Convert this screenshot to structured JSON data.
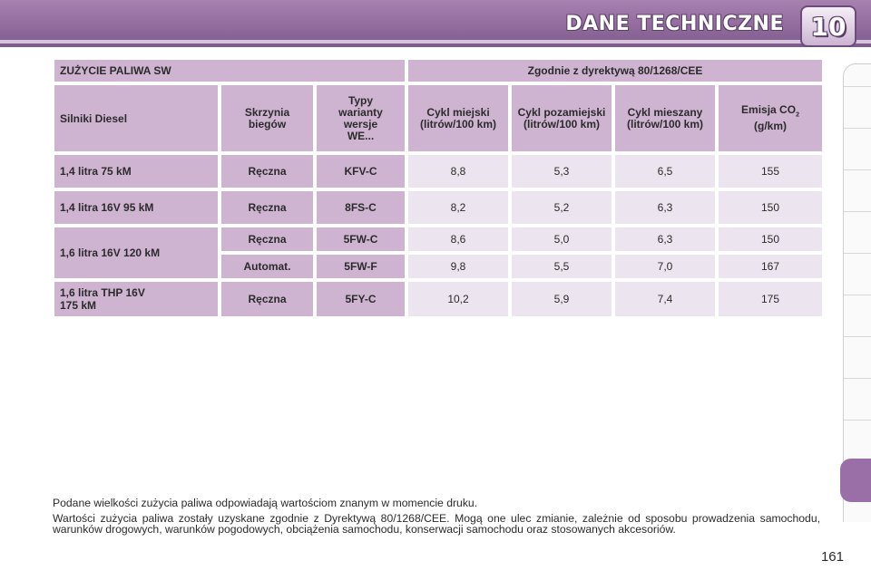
{
  "header": {
    "title": "DANE TECHNICZNE",
    "chapter": "10"
  },
  "table": {
    "title_left": "ZUŻYCIE PALIWA SW",
    "title_right": "Zgodnie z dyrektywą 80/1268/CEE",
    "columns": {
      "engines": "Silniki Diesel",
      "gearbox": "Skrzynia biegów",
      "variants": "Typy warianty wersje WE...",
      "urban": "Cykl miejski (litrów/100 km)",
      "extra_urban": "Cykl pozamiejski (litrów/100 km)",
      "combined": "Cykl mieszany (litrów/100 km)",
      "co2_prefix": "Emisja CO",
      "co2_sub": "2",
      "co2_unit": "(g/km)"
    },
    "rows": [
      {
        "engine": "1,4 litra 75 kM",
        "gearbox": "Ręczna",
        "variant": "KFV-C",
        "urban": "8,8",
        "extra": "5,3",
        "mixed": "6,5",
        "co2": "155"
      },
      {
        "engine": "1,4 litra 16V 95 kM",
        "gearbox": "Ręczna",
        "variant": "8FS-C",
        "urban": "8,2",
        "extra": "5,2",
        "mixed": "6,3",
        "co2": "150"
      },
      {
        "engine": "1,6 litra 16V 120 kM",
        "gearbox": "Ręczna",
        "variant": "5FW-C",
        "urban": "8,6",
        "extra": "5,0",
        "mixed": "6,3",
        "co2": "150"
      },
      {
        "engine": "",
        "gearbox": "Automat.",
        "variant": "5FW-F",
        "urban": "9,8",
        "extra": "5,5",
        "mixed": "7,0",
        "co2": "167"
      },
      {
        "engine": "1,6 litra THP 16V 175 kM",
        "gearbox": "Ręczna",
        "variant": "5FY-C",
        "urban": "10,2",
        "extra": "5,9",
        "mixed": "7,4",
        "co2": "175"
      }
    ]
  },
  "notes": {
    "line1": "Podane wielkości zużycia paliwa odpowiadają wartościom znanym w momencie druku.",
    "line2": "Wartości zużycia paliwa zostały uzyskane zgodnie z Dyrektywą 80/1268/CEE. Mogą one ulec zmianie, zależnie od sposobu prowadzenia samochodu, warunków drogowych, warunków pogodowych, obciążenia samochodu, konserwacji samochodu oraz stosowanych akcesoriów."
  },
  "page_number": "161",
  "colors": {
    "accent": "#9a6ea6",
    "header_cell": "#cfb4d2",
    "value_cell": "#ece4ee"
  }
}
